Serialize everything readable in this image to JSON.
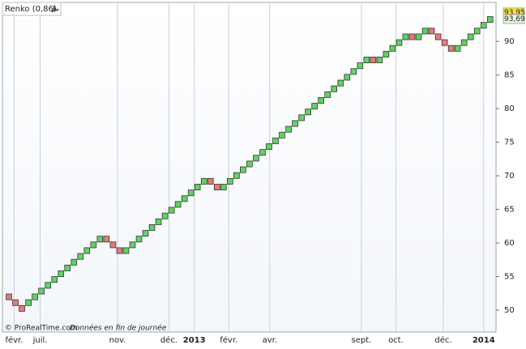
{
  "chart_data": {
    "type": "renko",
    "title": "Renko (0,86)",
    "brick_size": 0.86,
    "up_color": "#5fd35f",
    "down_color": "#e87878",
    "values": [
      51.55,
      50.69,
      49.83,
      51.55,
      52.41,
      53.27,
      54.13,
      54.99,
      55.85,
      56.71,
      57.57,
      58.43,
      59.29,
      60.15,
      61.01,
      60.15,
      59.29,
      58.43,
      59.29,
      60.15,
      61.01,
      61.87,
      62.73,
      63.59,
      64.45,
      65.31,
      66.17,
      67.03,
      67.89,
      68.75,
      69.61,
      68.75,
      67.89,
      68.75,
      69.61,
      70.47,
      71.33,
      72.19,
      73.05,
      73.91,
      74.77,
      75.63,
      76.49,
      77.35,
      78.21,
      79.07,
      79.93,
      80.79,
      81.65,
      82.51,
      83.37,
      84.23,
      85.09,
      85.95,
      86.81,
      87.67,
      86.81,
      87.67,
      88.53,
      89.39,
      90.25,
      91.11,
      90.25,
      91.11,
      91.97,
      91.11,
      90.25,
      89.39,
      88.53,
      89.39,
      90.25,
      91.11,
      91.97,
      92.83,
      93.69
    ],
    "ylim": [
      46.75,
      95.8
    ],
    "yticks": [
      50,
      55,
      60,
      65,
      70,
      75,
      80,
      85,
      90
    ],
    "xlim": [
      -1,
      74.9
    ],
    "xticks": [
      {
        "value": 0.8,
        "label": "févr."
      },
      {
        "value": 4.8,
        "label": "juil."
      },
      {
        "value": 16.7,
        "label": "nov."
      },
      {
        "value": 24.6,
        "label": "déc."
      },
      {
        "value": 28.5,
        "label": "2013"
      },
      {
        "value": 33.8,
        "label": "févr."
      },
      {
        "value": 40.1,
        "label": "avr."
      },
      {
        "value": 54.2,
        "label": "sept."
      },
      {
        "value": 59.5,
        "label": "oct."
      },
      {
        "value": 66.8,
        "label": "déc."
      },
      {
        "value": 73,
        "label": "2014"
      }
    ],
    "bold_xticks": [
      "2013",
      "2014"
    ],
    "price_labels": [
      {
        "value": 93.95,
        "label": "93,95",
        "color": "#f5e33a"
      },
      {
        "value": 93.69,
        "label": "93,69",
        "color": "#e8f5e0"
      }
    ],
    "copyright": "© ProRealTime.com",
    "note": "Données en fin de journée"
  }
}
